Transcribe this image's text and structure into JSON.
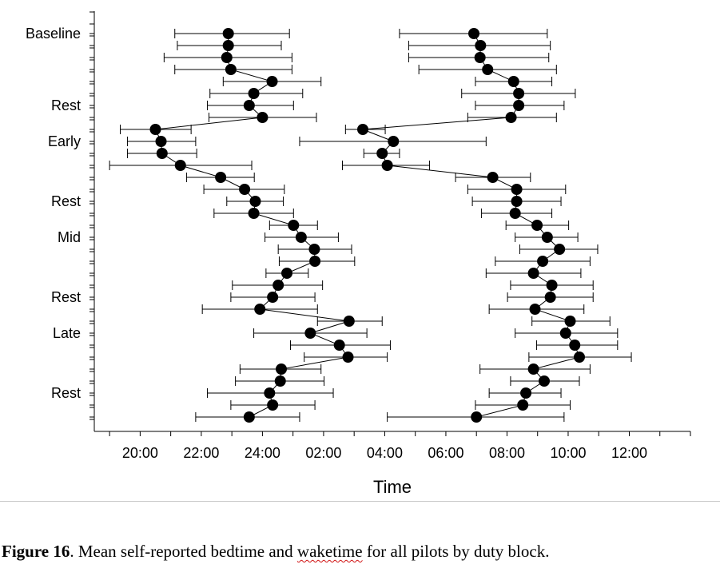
{
  "chart_data": {
    "type": "scatter",
    "xlabel": "Time",
    "x_ticks": [
      "20:00",
      "22:00",
      "24:00",
      "02:00",
      "04:00",
      "06:00",
      "08:00",
      "10:00",
      "12:00"
    ],
    "x_range_hours": [
      18.5,
      38.0
    ],
    "y_labels": [
      {
        "row": 0,
        "label": "Baseline"
      },
      {
        "row": 6,
        "label": "Rest"
      },
      {
        "row": 9,
        "label": "Early"
      },
      {
        "row": 14,
        "label": "Rest"
      },
      {
        "row": 17,
        "label": "Mid"
      },
      {
        "row": 22,
        "label": "Rest"
      },
      {
        "row": 25,
        "label": "Late"
      },
      {
        "row": 30,
        "label": "Rest"
      }
    ],
    "row_count": 33,
    "series": [
      {
        "points": [
          {
            "row": 0,
            "time": "22:53",
            "low": "21:08",
            "high": "24:53"
          },
          {
            "row": 1,
            "time": "22:53",
            "low": "21:13",
            "high": "24:37"
          },
          {
            "row": 2,
            "time": "22:50",
            "low": "20:47",
            "high": "24:58"
          },
          {
            "row": 3,
            "time": "22:58",
            "low": "21:08",
            "high": "24:58"
          },
          {
            "row": 4,
            "time": "24:19",
            "low": "22:43",
            "high": "25:55"
          },
          {
            "row": 5,
            "time": "23:43",
            "low": "22:17",
            "high": "25:19"
          },
          {
            "row": 6,
            "time": "23:34",
            "low": "22:12",
            "high": "25:01"
          },
          {
            "row": 7,
            "time": "24:00",
            "low": "22:15",
            "high": "25:46"
          },
          {
            "row": 8,
            "time": "20:30",
            "low": "19:21",
            "high": "21:40"
          },
          {
            "row": 9,
            "time": "20:41",
            "low": "19:35",
            "high": "21:49"
          },
          {
            "row": 10,
            "time": "20:43",
            "low": "19:35",
            "high": "21:51"
          },
          {
            "row": 11,
            "time": "21:19",
            "low": "19:00",
            "high": "23:39"
          },
          {
            "row": 12,
            "time": "22:38",
            "low": "21:31",
            "high": "23:44"
          },
          {
            "row": 13,
            "time": "23:25",
            "low": "22:05",
            "high": "24:43"
          },
          {
            "row": 14,
            "time": "23:46",
            "low": "22:50",
            "high": "24:41"
          },
          {
            "row": 15,
            "time": "23:43",
            "low": "22:25",
            "high": "25:01"
          },
          {
            "row": 16,
            "time": "25:01",
            "low": "24:14",
            "high": "25:48"
          },
          {
            "row": 17,
            "time": "25:16",
            "low": "24:05",
            "high": "26:29"
          },
          {
            "row": 18,
            "time": "25:42",
            "low": "24:31",
            "high": "26:55"
          },
          {
            "row": 19,
            "time": "25:43",
            "low": "24:33",
            "high": "27:01"
          },
          {
            "row": 20,
            "time": "24:48",
            "low": "24:07",
            "high": "25:30"
          },
          {
            "row": 21,
            "time": "24:31",
            "low": "23:01",
            "high": "25:58"
          },
          {
            "row": 22,
            "time": "24:20",
            "low": "22:58",
            "high": "25:43"
          },
          {
            "row": 23,
            "time": "23:55",
            "low": "22:02",
            "high": "25:48"
          },
          {
            "row": 24,
            "time": "26:50",
            "low": "25:48",
            "high": "27:55"
          },
          {
            "row": 25,
            "time": "25:34",
            "low": "23:43",
            "high": "27:25"
          },
          {
            "row": 26,
            "time": "26:31",
            "low": "24:55",
            "high": "28:11"
          },
          {
            "row": 27,
            "time": "26:48",
            "low": "25:22",
            "high": "28:05"
          },
          {
            "row": 28,
            "time": "24:37",
            "low": "23:16",
            "high": "25:55"
          },
          {
            "row": 29,
            "time": "24:35",
            "low": "23:07",
            "high": "26:01"
          },
          {
            "row": 30,
            "time": "24:14",
            "low": "22:12",
            "high": "26:19"
          },
          {
            "row": 31,
            "time": "24:20",
            "low": "22:58",
            "high": "25:43"
          },
          {
            "row": 32,
            "time": "23:34",
            "low": "21:49",
            "high": "25:13"
          }
        ]
      },
      {
        "points": [
          {
            "row": 0,
            "time": "30:55",
            "low": "28:29",
            "high": "33:19"
          },
          {
            "row": 1,
            "time": "31:08",
            "low": "28:47",
            "high": "33:25"
          },
          {
            "row": 2,
            "time": "31:07",
            "low": "28:47",
            "high": "33:22"
          },
          {
            "row": 3,
            "time": "31:22",
            "low": "29:07",
            "high": "33:37"
          },
          {
            "row": 4,
            "time": "32:13",
            "low": "30:58",
            "high": "33:28"
          },
          {
            "row": 5,
            "time": "32:23",
            "low": "30:31",
            "high": "34:14"
          },
          {
            "row": 6,
            "time": "32:23",
            "low": "30:58",
            "high": "33:52"
          },
          {
            "row": 7,
            "time": "32:08",
            "low": "30:43",
            "high": "33:37"
          },
          {
            "row": 8,
            "time": "27:17",
            "low": "26:43",
            "high": "28:01"
          },
          {
            "row": 9,
            "time": "28:17",
            "low": "25:13",
            "high": "31:19"
          },
          {
            "row": 10,
            "time": "27:55",
            "low": "27:19",
            "high": "28:29"
          },
          {
            "row": 11,
            "time": "28:05",
            "low": "26:37",
            "high": "29:28"
          },
          {
            "row": 12,
            "time": "31:32",
            "low": "30:19",
            "high": "32:46"
          },
          {
            "row": 13,
            "time": "32:19",
            "low": "30:43",
            "high": "33:55"
          },
          {
            "row": 14,
            "time": "32:19",
            "low": "30:52",
            "high": "33:46"
          },
          {
            "row": 15,
            "time": "32:16",
            "low": "31:10",
            "high": "33:28"
          },
          {
            "row": 16,
            "time": "32:59",
            "low": "31:58",
            "high": "34:01"
          },
          {
            "row": 17,
            "time": "33:19",
            "low": "32:16",
            "high": "34:19"
          },
          {
            "row": 18,
            "time": "33:43",
            "low": "32:25",
            "high": "34:58"
          },
          {
            "row": 19,
            "time": "33:10",
            "low": "31:37",
            "high": "34:43"
          },
          {
            "row": 20,
            "time": "32:52",
            "low": "31:19",
            "high": "34:25"
          },
          {
            "row": 21,
            "time": "33:28",
            "low": "32:07",
            "high": "34:49"
          },
          {
            "row": 22,
            "time": "33:25",
            "low": "32:01",
            "high": "34:49"
          },
          {
            "row": 23,
            "time": "32:55",
            "low": "31:25",
            "high": "34:31"
          },
          {
            "row": 24,
            "time": "34:04",
            "low": "32:49",
            "high": "35:22"
          },
          {
            "row": 25,
            "time": "33:55",
            "low": "32:16",
            "high": "35:37"
          },
          {
            "row": 26,
            "time": "34:13",
            "low": "32:58",
            "high": "35:37"
          },
          {
            "row": 27,
            "time": "34:22",
            "low": "32:43",
            "high": "36:04"
          },
          {
            "row": 28,
            "time": "32:52",
            "low": "31:07",
            "high": "34:43"
          },
          {
            "row": 29,
            "time": "33:13",
            "low": "32:07",
            "high": "34:22"
          },
          {
            "row": 30,
            "time": "32:37",
            "low": "31:25",
            "high": "33:46"
          },
          {
            "row": 31,
            "time": "32:31",
            "low": "30:58",
            "high": "34:04"
          },
          {
            "row": 32,
            "time": "31:00",
            "low": "28:05",
            "high": "33:52"
          }
        ]
      }
    ]
  },
  "caption": {
    "label": "Figure 16",
    "text_before": ". Mean self-reported bedtime and ",
    "flagged_word": "waketime",
    "text_after": " for all pilots by duty block."
  }
}
